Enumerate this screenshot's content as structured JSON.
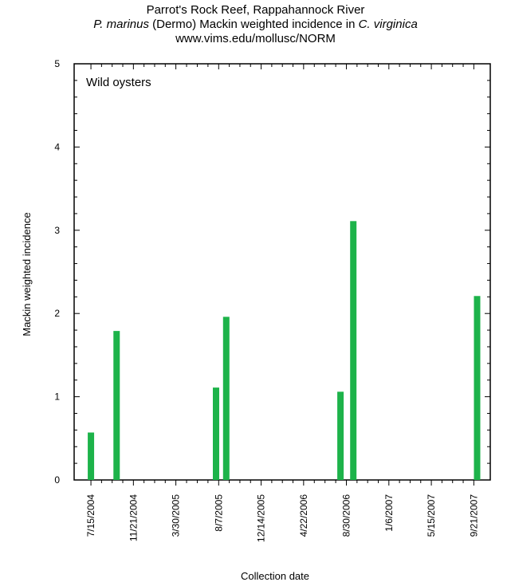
{
  "title_block": {
    "line1": "Parrot's Rock Reef, Rappahannock River",
    "line2_italic_a": "P. marinus",
    "line2_text_b": " (Dermo) Mackin weighted incidence in ",
    "line2_italic_c": "C. virginica",
    "line3": "www.vims.edu/mollusc/NORM"
  },
  "chart_data": {
    "type": "bar",
    "annotation": "Wild oysters",
    "xlabel": "Collection date",
    "ylabel": "Mackin weighted incidence",
    "ylim": [
      0,
      5
    ],
    "y_ticks": [
      "0",
      "1",
      "2",
      "3",
      "4",
      "5"
    ],
    "x_ticks": [
      "7/15/2004",
      "11/21/2004",
      "3/30/2005",
      "8/7/2005",
      "12/14/2005",
      "4/22/2006",
      "8/30/2006",
      "1/6/2007",
      "5/15/2007",
      "9/21/2007"
    ],
    "x_range": [
      "2004-05-25",
      "2007-11-10"
    ],
    "colors": {
      "bars": "#1db34a",
      "axis": "#000000"
    },
    "categories": [
      "2004-07-15",
      "2004-10-01",
      "2005-07-30",
      "2005-08-30",
      "2006-08-12",
      "2006-09-20",
      "2007-10-01"
    ],
    "values": [
      0.57,
      1.79,
      1.11,
      1.96,
      1.06,
      3.11,
      2.21
    ]
  }
}
